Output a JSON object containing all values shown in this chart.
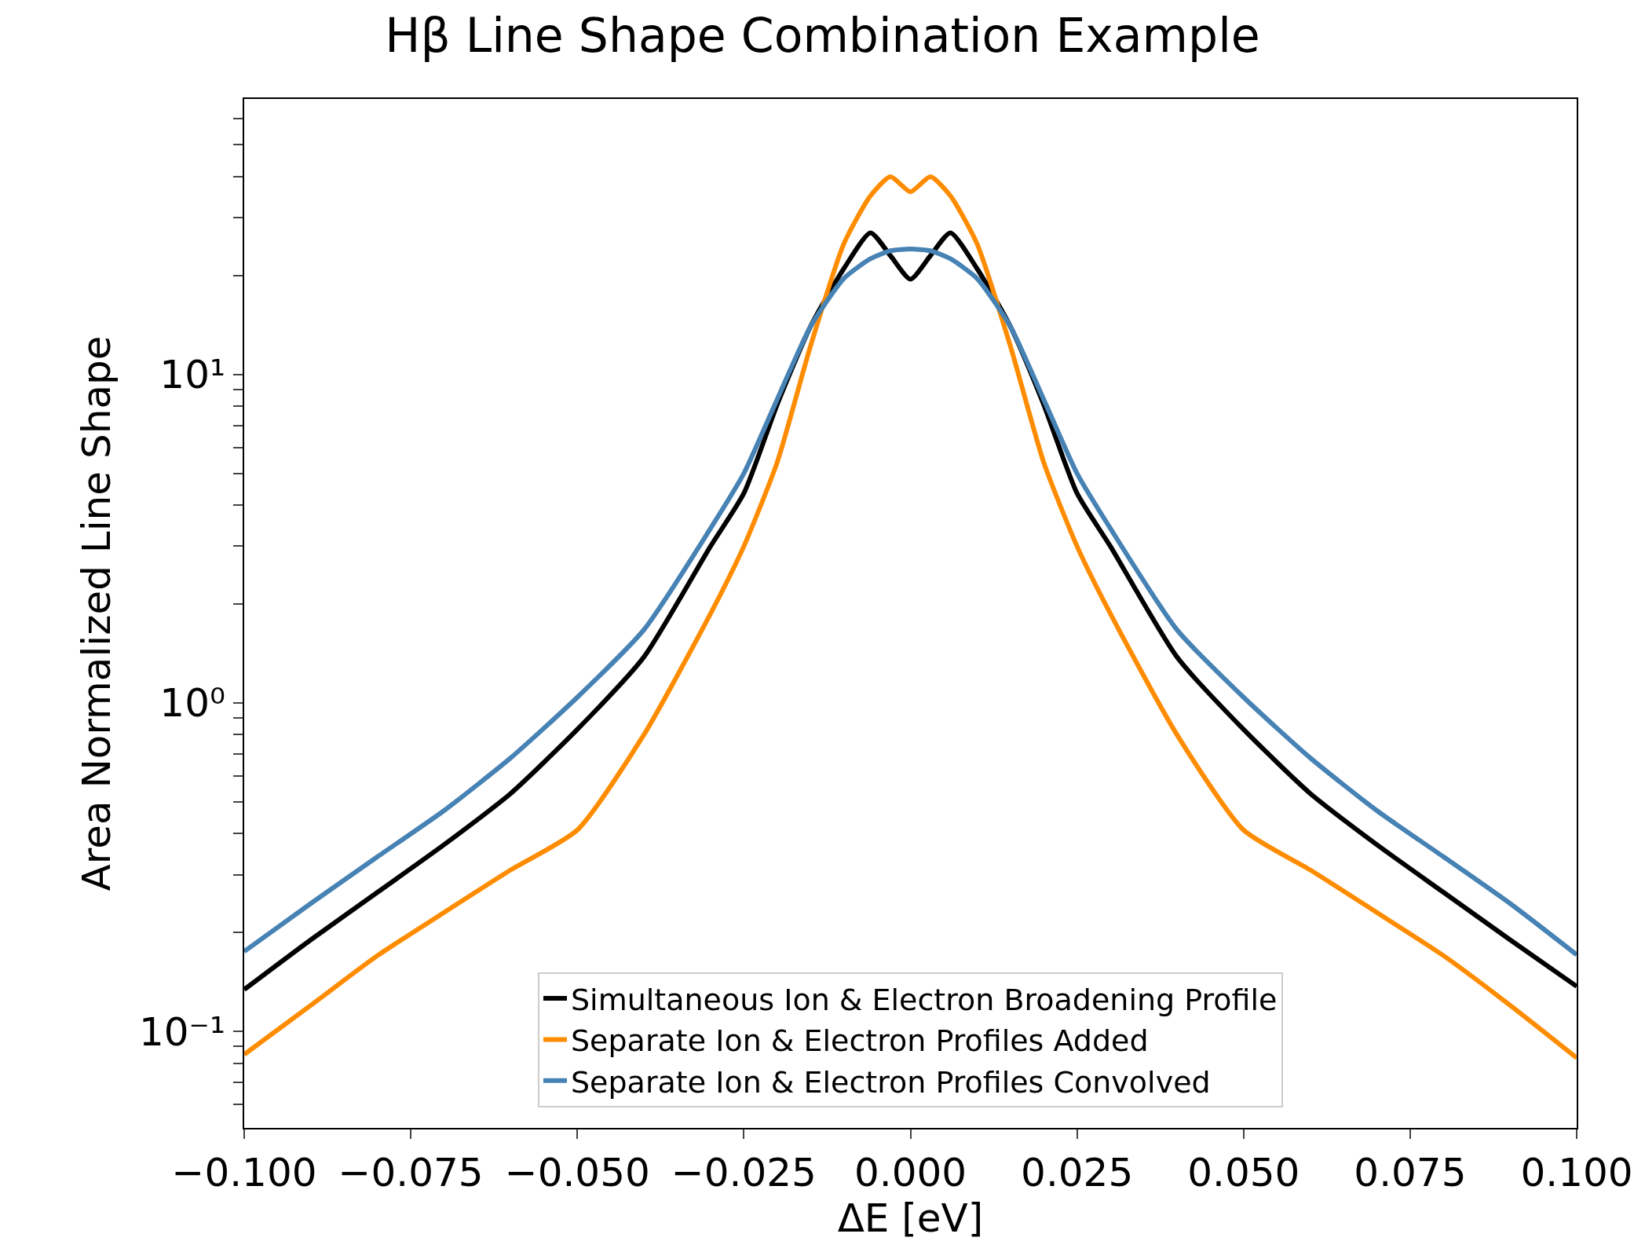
{
  "chart_data": {
    "type": "line",
    "title": "Hβ Line Shape Combination Example",
    "xlabel": "ΔE [eV]",
    "ylabel": "Area Normalized Line Shape",
    "x": [
      -0.1,
      -0.09,
      -0.08,
      -0.07,
      -0.06,
      -0.05,
      -0.04,
      -0.03,
      -0.025,
      -0.02,
      -0.015,
      -0.01,
      -0.006,
      -0.003,
      0,
      0.003,
      0.006,
      0.01,
      0.015,
      0.02,
      0.025,
      0.03,
      0.04,
      0.05,
      0.06,
      0.07,
      0.08,
      0.09,
      0.1
    ],
    "series": [
      {
        "name": "Simultaneous Ion & Electron Broadening Profile",
        "color": "#000000",
        "values": [
          0.134,
          0.19,
          0.265,
          0.37,
          0.53,
          0.83,
          1.38,
          3.0,
          4.35,
          8.1,
          14,
          21,
          27,
          23,
          19.5,
          23,
          27,
          21,
          14,
          8.1,
          4.35,
          3.0,
          1.38,
          0.83,
          0.53,
          0.37,
          0.265,
          0.19,
          0.137
        ]
      },
      {
        "name": "Separate Ion & Electron Profiles Added",
        "color": "#ff8c00",
        "values": [
          0.085,
          0.12,
          0.17,
          0.23,
          0.31,
          0.41,
          0.8,
          1.87,
          3.0,
          5.4,
          12.2,
          25,
          35,
          40,
          36,
          40,
          35,
          25,
          12.2,
          5.4,
          3.0,
          1.87,
          0.8,
          0.41,
          0.31,
          0.23,
          0.17,
          0.12,
          0.083
        ]
      },
      {
        "name": "Separate Ion & Electron Profiles Convolved",
        "color": "#4682b4",
        "values": [
          0.175,
          0.245,
          0.34,
          0.47,
          0.68,
          1.04,
          1.67,
          3.4,
          5.0,
          8.4,
          14,
          19.6,
          22.5,
          23.8,
          24.1,
          23.8,
          22.5,
          19.6,
          14,
          8.4,
          5.0,
          3.4,
          1.67,
          1.04,
          0.68,
          0.47,
          0.34,
          0.245,
          0.171
        ]
      }
    ],
    "log": "y",
    "xlim": [
      -0.1,
      0.1
    ],
    "ylim": [
      0.0508,
      69
    ],
    "xticks": [
      {
        "value": -0.1,
        "label": "−0.100"
      },
      {
        "value": -0.075,
        "label": "−0.075"
      },
      {
        "value": -0.05,
        "label": "−0.050"
      },
      {
        "value": -0.025,
        "label": "−0.025"
      },
      {
        "value": 0,
        "label": "0.000"
      },
      {
        "value": 0.025,
        "label": "0.025"
      },
      {
        "value": 0.05,
        "label": "0.050"
      },
      {
        "value": 0.075,
        "label": "0.075"
      },
      {
        "value": 0.1,
        "label": "0.100"
      }
    ],
    "yticks": [
      {
        "value": 0.06,
        "label": null
      },
      {
        "value": 0.07,
        "label": null
      },
      {
        "value": 0.08,
        "label": null
      },
      {
        "value": 0.09,
        "label": null
      },
      {
        "value": 0.1,
        "label": "10⁻¹"
      },
      {
        "value": 0.2,
        "label": null
      },
      {
        "value": 0.3,
        "label": null
      },
      {
        "value": 0.4,
        "label": null
      },
      {
        "value": 0.5,
        "label": null
      },
      {
        "value": 0.6,
        "label": null
      },
      {
        "value": 0.7,
        "label": null
      },
      {
        "value": 0.8,
        "label": null
      },
      {
        "value": 0.9,
        "label": null
      },
      {
        "value": 1,
        "label": "10⁰"
      },
      {
        "value": 2,
        "label": null
      },
      {
        "value": 3,
        "label": null
      },
      {
        "value": 4,
        "label": null
      },
      {
        "value": 5,
        "label": null
      },
      {
        "value": 6,
        "label": null
      },
      {
        "value": 7,
        "label": null
      },
      {
        "value": 8,
        "label": null
      },
      {
        "value": 9,
        "label": null
      },
      {
        "value": 10,
        "label": "10¹"
      },
      {
        "value": 20,
        "label": null
      },
      {
        "value": 30,
        "label": null
      },
      {
        "value": 40,
        "label": null
      },
      {
        "value": 50,
        "label": null
      },
      {
        "value": 60,
        "label": null
      }
    ],
    "legend": "bottom",
    "line_style": "solid",
    "marker": "none"
  }
}
